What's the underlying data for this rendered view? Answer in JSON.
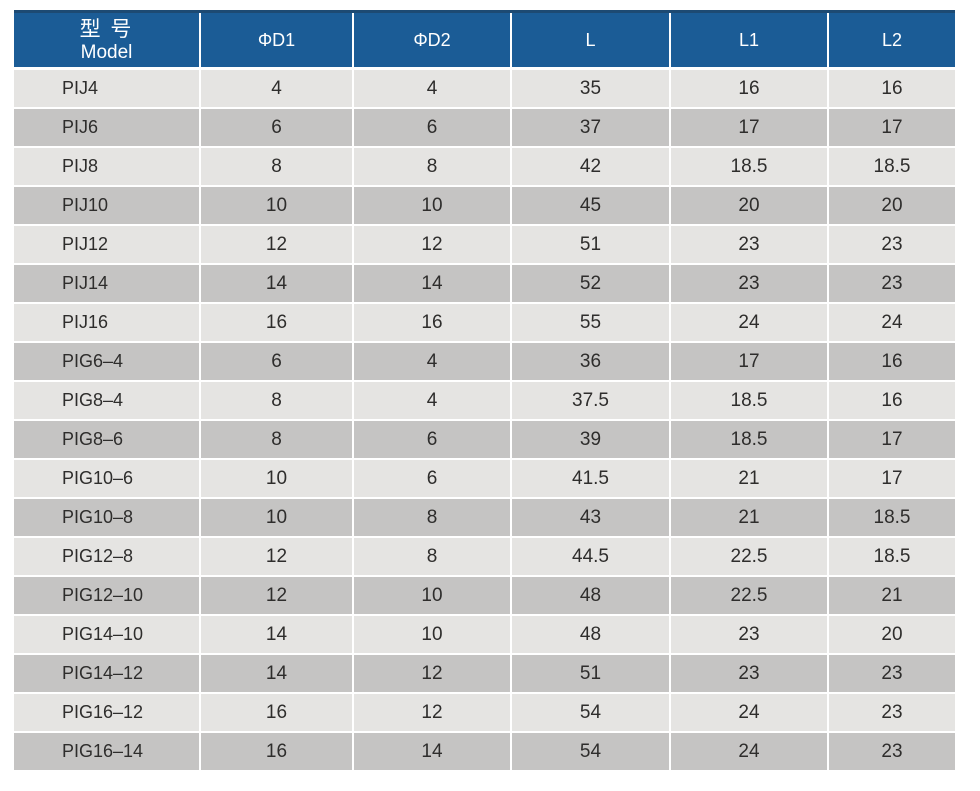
{
  "colors": {
    "header_blue": "#1b5c96",
    "header_top_edge": "#1d4a73",
    "row_light": "#e5e4e2",
    "row_dark": "#c5c4c3",
    "body_text": "#2e2d2c",
    "header_text": "#ffffff"
  },
  "table": {
    "header": {
      "model_line1": "型 号",
      "model_line2": "Model",
      "columns": [
        "ΦD1",
        "ΦD2",
        "L",
        "L1",
        "L2"
      ]
    },
    "rows": [
      [
        "PIJ4",
        "4",
        "4",
        "35",
        "16",
        "16"
      ],
      [
        "PIJ6",
        "6",
        "6",
        "37",
        "17",
        "17"
      ],
      [
        "PIJ8",
        "8",
        "8",
        "42",
        "18.5",
        "18.5"
      ],
      [
        "PIJ10",
        "10",
        "10",
        "45",
        "20",
        "20"
      ],
      [
        "PIJ12",
        "12",
        "12",
        "51",
        "23",
        "23"
      ],
      [
        "PIJ14",
        "14",
        "14",
        "52",
        "23",
        "23"
      ],
      [
        "PIJ16",
        "16",
        "16",
        "55",
        "24",
        "24"
      ],
      [
        "PIG6–4",
        "6",
        "4",
        "36",
        "17",
        "16"
      ],
      [
        "PIG8–4",
        "8",
        "4",
        "37.5",
        "18.5",
        "16"
      ],
      [
        "PIG8–6",
        "8",
        "6",
        "39",
        "18.5",
        "17"
      ],
      [
        "PIG10–6",
        "10",
        "6",
        "41.5",
        "21",
        "17"
      ],
      [
        "PIG10–8",
        "10",
        "8",
        "43",
        "21",
        "18.5"
      ],
      [
        "PIG12–8",
        "12",
        "8",
        "44.5",
        "22.5",
        "18.5"
      ],
      [
        "PIG12–10",
        "12",
        "10",
        "48",
        "22.5",
        "21"
      ],
      [
        "PIG14–10",
        "14",
        "10",
        "48",
        "23",
        "20"
      ],
      [
        "PIG14–12",
        "14",
        "12",
        "51",
        "23",
        "23"
      ],
      [
        "PIG16–12",
        "16",
        "12",
        "54",
        "24",
        "23"
      ],
      [
        "PIG16–14",
        "16",
        "14",
        "54",
        "24",
        "23"
      ]
    ]
  },
  "chart_data": {
    "type": "table",
    "columns": [
      "型 号 Model",
      "ΦD1",
      "ΦD2",
      "L",
      "L1",
      "L2"
    ],
    "rows": [
      [
        "PIJ4",
        4,
        4,
        35,
        16,
        16
      ],
      [
        "PIJ6",
        6,
        6,
        37,
        17,
        17
      ],
      [
        "PIJ8",
        8,
        8,
        42,
        18.5,
        18.5
      ],
      [
        "PIJ10",
        10,
        10,
        45,
        20,
        20
      ],
      [
        "PIJ12",
        12,
        12,
        51,
        23,
        23
      ],
      [
        "PIJ14",
        14,
        14,
        52,
        23,
        23
      ],
      [
        "PIJ16",
        16,
        16,
        55,
        24,
        24
      ],
      [
        "PIG6–4",
        6,
        4,
        36,
        17,
        16
      ],
      [
        "PIG8–4",
        8,
        4,
        37.5,
        18.5,
        16
      ],
      [
        "PIG8–6",
        8,
        6,
        39,
        18.5,
        17
      ],
      [
        "PIG10–6",
        10,
        6,
        41.5,
        21,
        17
      ],
      [
        "PIG10–8",
        10,
        8,
        43,
        21,
        18.5
      ],
      [
        "PIG12–8",
        12,
        8,
        44.5,
        22.5,
        18.5
      ],
      [
        "PIG12–10",
        12,
        10,
        48,
        22.5,
        21
      ],
      [
        "PIG14–10",
        14,
        10,
        48,
        23,
        20
      ],
      [
        "PIG14–12",
        14,
        12,
        51,
        23,
        23
      ],
      [
        "PIG16–12",
        16,
        12,
        54,
        24,
        23
      ],
      [
        "PIG16–14",
        16,
        14,
        54,
        24,
        23
      ]
    ]
  }
}
